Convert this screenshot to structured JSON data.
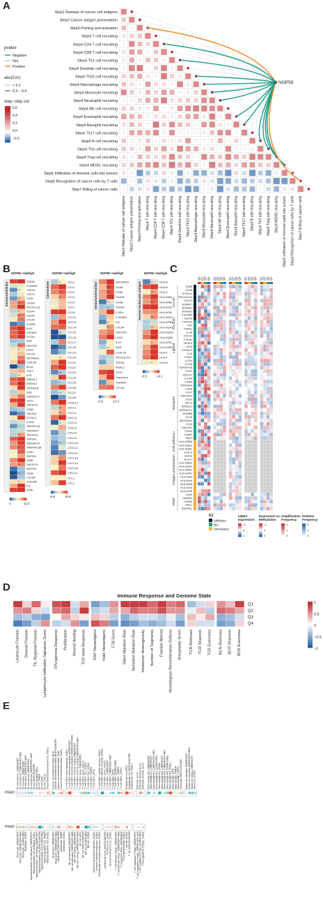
{
  "panels": {
    "A": "A",
    "B": "B",
    "C": "C",
    "D": "D",
    "E": "E"
  },
  "panelA": {
    "steps": [
      "Step1 Release of cancer cell antigens",
      "Step2 Cancer antigen presentation",
      "Step3 Priming and activation",
      "Step4 T cell recruiting",
      "Step4 CD4 T cell recruiting",
      "Step4 CD8 T cell recruiting",
      "Step4 Th1 cell recruiting",
      "Step4 Dendritic cell recruiting",
      "Step4 Th22 cell recruiting",
      "Step4 Macrophage recruiting",
      "Step4 Monocyte recruiting",
      "Step4 Neutrophil recruiting",
      "Step4 NK cell recruiting",
      "Step4 Eosinophil recruiting",
      "Step4 Basophil recruiting",
      "Step4 Th17 cell recruiting",
      "Step4 B cell recruiting",
      "Step4 Th2 cell recruiting",
      "Step4 Treg cell recruiting",
      "Step4 MDSC recruiting",
      "Step5 Infiltration of immune cells into tumors",
      "Step6 Recognition of cancer cells by T cells",
      "Step7 Killing of cancer cells"
    ],
    "hub_label": "NOP58",
    "legend": {
      "pvalue_title": "pvalue",
      "pvalue_items": [
        "Negative",
        "Not",
        "Positive"
      ],
      "pvalue_colors": [
        "#1a9e86",
        "#c8c8c8",
        "#f08a24"
      ],
      "abs_title": "abs(Cor)",
      "abs_items": [
        "< 0.2",
        "0.2 – 0.4"
      ],
      "cor_title": "step−step cor",
      "cor_ticks": [
        "0.6",
        "0.4",
        "0.2",
        "0.0",
        "−0.2"
      ]
    },
    "hub_links": [
      {
        "row": 2,
        "sign": "Positive"
      },
      {
        "row": 4,
        "sign": "Negative"
      },
      {
        "row": 6,
        "sign": "Negative"
      },
      {
        "row": 8,
        "sign": "Negative"
      },
      {
        "row": 9,
        "sign": "Negative"
      },
      {
        "row": 10,
        "sign": "Negative"
      },
      {
        "row": 11,
        "sign": "Negative"
      },
      {
        "row": 13,
        "sign": "Negative"
      },
      {
        "row": 14,
        "sign": "Negative"
      },
      {
        "row": 16,
        "sign": "Negative"
      },
      {
        "row": 17,
        "sign": "Negative"
      },
      {
        "row": 18,
        "sign": "Negative"
      },
      {
        "row": 19,
        "sign": "Negative"
      },
      {
        "row": 21,
        "sign": "Positive"
      }
    ]
  },
  "panelB": {
    "group_header": "NOP58: low/high",
    "blocks": [
      {
        "title": "Immunoinhibitor",
        "genes": [
          "TGFB1",
          "C10orf54",
          "CSF1R",
          "CD274",
          "CD96",
          "CD160",
          "PDCD1LG2",
          "CD244",
          "CD276",
          "CTLA4",
          "IL10RB",
          "IDO1",
          "TGFBR1",
          "VTCN1",
          "KDR",
          "HAVCR2",
          "LAG3",
          "PDCD1",
          "ADORA2A",
          "LGALS9",
          "BTLA",
          "TIGIT",
          "IL10",
          "KIR2DL1",
          "KIR2DL3",
          "TNFRSF8",
          "IL6R",
          "TNFRSF17",
          "CD27",
          "TNFSF14",
          "CD86",
          "TMIGD2",
          "ICOSLG",
          "IL2RA",
          "TNFRSF25",
          "TNFRSF4",
          "TNFSF18",
          "TNFSF9",
          "TNFRSF14",
          "TNFRSF13B",
          "CD40",
          "TNFSF4",
          "CD80",
          "TNFSF13",
          "ENTPD1",
          "CD48",
          "CXCR4",
          "C10orf54",
          "IL6",
          "NT5E"
        ],
        "ticks": [
          "-1",
          "11.5"
        ]
      },
      {
        "title": "Chemokine",
        "genes": [
          "CCL1",
          "CCL2",
          "CCL3",
          "CCL4",
          "CCL5",
          "CCL7",
          "CCL8",
          "CCL11",
          "CCL13",
          "CCL14",
          "CCL15",
          "CCL16",
          "CCL17",
          "CCL18",
          "CCL19",
          "CCL20",
          "CCL21",
          "CCL22",
          "CCL23",
          "CCL24",
          "CCL25",
          "CCL26",
          "CCL27",
          "CCL28",
          "CX3CL1",
          "CXCL1",
          "CXCL2",
          "CXCL3",
          "CXCL5",
          "CXCL6",
          "CXCL8",
          "CXCL9",
          "CXCL10",
          "CXCL11",
          "CXCL12",
          "CXCL13",
          "CXCL14",
          "CXCL16",
          "CXCL17",
          "XCL1",
          "XCL2"
        ],
        "ticks": [
          "-0.8",
          "10.6"
        ]
      },
      {
        "title": "Immunostimulator",
        "genes": [
          "ADORA2A",
          "CD48",
          "CD40",
          "CD244",
          "CD96",
          "CD160",
          "IL2RA",
          "C10orf54",
          "IL6",
          "CTLA4",
          "HAVCR2",
          "LAG3",
          "IL10",
          "KDR",
          "LGALS9",
          "PDCD1LG2",
          "TGFB1",
          "PVRL2",
          "TIGIT",
          "TNFRSF4",
          "TGFBR1",
          "VTCN1"
        ],
        "ticks": [
          "-0.8",
          "12.4"
        ]
      },
      {
        "title": "Human leukocyte antigen",
        "genes": [
          "HLA-A",
          "HLA-B",
          "HLA-C",
          "HLA-DMA",
          "HLA-DMB",
          "HLA-DOA",
          "HLA-DOB",
          "HLA-DPA1",
          "HLA-DPB1",
          "HLA-DQA1",
          "HLA-DQA2",
          "HLA-DQB1",
          "HLA-DRA",
          "HLA-DRB1",
          "HLA-E",
          "HLA-F",
          "HLA-G"
        ],
        "ticks": [
          "-0.5",
          "14.1"
        ]
      }
    ]
  },
  "panelC": {
    "col_headers": [
      "Q1",
      "Q2",
      "Q3",
      "Q4",
      "Q1",
      "Q2",
      "Q3",
      "Q4",
      "Q1",
      "Q2",
      "Q3",
      "Q4",
      "Q1",
      "Q2",
      "Q3",
      "Q4",
      "Q1",
      "Q2",
      "Q3",
      "Q4"
    ],
    "genes": [
      "CD80",
      "CD28",
      "ICOSLG",
      "PDCD1LG2",
      "CD274",
      "SLAMF7",
      "BTN3A2",
      "BTN3A1",
      "C10orf54",
      "CD276",
      "TNFSF9",
      "TNF",
      "TGFB1",
      "IL1B",
      "CXCL9",
      "TGFB1",
      "VEGFA",
      "CD70",
      "CD40LG",
      "IL10",
      "IFNA1",
      "IL12A",
      "IL13A",
      "TNFRSF18",
      "TIGIT",
      "PDCD1",
      "CTLA4",
      "IL2RA",
      "TNFRSF4",
      "LAG3",
      "CD27",
      "TNFRSF9",
      "ICOS",
      "BTLA",
      "KIR2DL1",
      "TNFRSF14",
      "EDNRB",
      "CD40",
      "ADORA2A",
      "TLR4",
      "HAVCR2",
      "ITGB2",
      "ICAM1",
      "SELP",
      "HLA-DRB5",
      "HLA-DQA1",
      "HLA-DQB1",
      "HLA-A",
      "HLA-B",
      "HLA-C",
      "HLA-DRB1",
      "HLA-DQA2",
      "HLA-DPB1",
      "HLA-DPA1",
      "HLA-DRA",
      "HLA-DMA",
      "HLA-DMB",
      "HLA-DOA",
      "HLA-DOB",
      "CD40",
      "HMGB1",
      "GZMA",
      "PRF1",
      "ENTPD1"
    ],
    "groups": [
      "Co-inh",
      "Co-stim",
      "Ligand",
      "Receptor",
      "Cell adhesion",
      "Antigen presentation",
      "Other"
    ],
    "legend_ici_title": "ICI",
    "legend_ici": [
      "Inhibitory",
      "N/A",
      "Stimulatory"
    ],
    "bottom_titles": [
      "mRNA Expression",
      "Expression vs. Methylation",
      "Amplification Frequency",
      "Deletion Frequency"
    ],
    "bottom_ticks": [
      [
        "-2",
        "0",
        "2"
      ],
      [
        "-2",
        "0",
        "2"
      ],
      [
        "0",
        "1",
        "2"
      ],
      [
        "0",
        "1",
        "2"
      ]
    ]
  },
  "panelD": {
    "title": "Immune Response and Genome State",
    "rows": [
      "Q1",
      "Q2",
      "Q3",
      "Q4"
    ],
    "groups": [
      [
        "Leukocyte Fraction",
        "Stromal Fraction",
        "TIL Regional Fraction",
        "Lymphocyte Infiltration Signature Score"
      ],
      [
        "IFN-gamma Response",
        "Proliferation",
        "Wound Healing",
        "TGF-beta Response"
      ],
      [
        "SNV Neoantigens",
        "Indel Neoantigens",
        "CTA Score"
      ],
      [
        "Silent Mutation Rate",
        "Nonsilent Mutation Rate",
        "Intratumor Heterogeneity",
        "Number of Segments",
        "Fraction Altered",
        "Homologous Recombination Defects",
        "Aneuploidy Score"
      ],
      [
        "TCR Richness",
        "TCR Shannon",
        "TCR Evenness"
      ],
      [
        "BCR Richness",
        "BCR Shannon",
        "BCR Evenness"
      ]
    ],
    "legend_ticks": [
      "1",
      "0.5",
      "0",
      "−0.5",
      "−1"
    ]
  },
  "panelE": {
    "row_label": "PRAD",
    "top_groups": [
      [
        "B cell memory_CIBERSORT",
        "B cell memory_CIBERSORT-ABS",
        "B cell naive_CIBERSORT",
        "B cell naive_CIBERSORT-ABS",
        "B cell plasma_CIBERSORT",
        "B cell plasma_CIBERSORT-ABS",
        "B cell_MCPCOUNTER",
        "B cell_QUANTISEQ",
        "B cell_TIMER",
        "B cell_EPIC",
        "B cell_XCELL",
        "Class-switched memory B cell_XCELL"
      ],
      [
        "Cancer associated fibroblast_EPIC",
        "Cancer associated fibroblast_MCPCOUNTER",
        "Cancer associated fibroblast_TIDE",
        "Cancer associated fibroblast_XCELL"
      ],
      [
        "T cell CD4+ (non-regulatory)_XCELL",
        "T cell CD4+ memory activated_CIBERSORT",
        "T cell CD4+ memory activated_CIBERSORT-ABS",
        "T cell CD4+ memory resting_CIBERSORT",
        "T cell CD4+ memory resting_CIBERSORT-ABS",
        "T cell CD4+ naive_CIBERSORT",
        "T cell CD4+ naive_XCELL",
        "T cell CD4+ Th1_XCELL",
        "T cell CD4+ Th2_XCELL",
        "T cell CD4+_TIMER",
        "T cell CD4+_EPIC"
      ],
      [
        "T cell CD8+ central memory_XCELL",
        "T cell CD8+ effector memory_XCELL",
        "T cell CD8+ naive_XCELL",
        "T cell CD8+_CIBERSORT",
        "T cell CD8+_CIBERSORT-ABS",
        "T cell CD8+_EPIC",
        "T cell CD8+_QUANTISEQ",
        "T cell CD8+_TIMER",
        "T cell CD8+_XCELL"
      ],
      [
        "Endothelial cell_EPIC",
        "Endothelial cell_MCPCOUNTER",
        "Endothelial cell_XCELL"
      ],
      [
        "Estimate Score",
        "Estimate Stromal Score",
        "Estimate Immune Score"
      ],
      [
        "Macrophage M0_CIBERSORT",
        "Macrophage M1_CIBERSORT",
        "Macrophage M1_CIBERSORT-ABS",
        "Macrophage M1_QUANTISEQ",
        "Macrophage M1_XCELL",
        "Macrophage M2_CIBERSORT",
        "Macrophage M2_CIBERSORT-ABS",
        "Macrophage M2_QUANTISEQ",
        "Macrophage M2_XCELL",
        "Macrophage_EPIC",
        "Macrophage_TIMER",
        "Macrophage_XCELL",
        "Monocyte_MCPCOUNTER"
      ],
      [
        "Mast cell activated_CIBERSORT",
        "Mast cell activated_CIBERSORT-ABS",
        "Mast cell resting_CIBERSORT",
        "Mast cell_XCELL"
      ]
    ],
    "bottom_groups": [
      [
        "Monocyte_CIBERSORT",
        "Monocyte_CIBERSORT-ABS",
        "Monocyte_QUANTISEQ",
        "Monocyte_XCELL"
      ],
      [
        "Myeloid dendritic cell activated_CIBERSORT",
        "Myeloid dendritic cell activated_XCELL",
        "Myeloid dendritic cell resting_CIBERSORT",
        "Myeloid dendritic cell_MCPCOUNTER",
        "Myeloid dendritic cell_QUANTISEQ",
        "Myeloid dendritic cell_TIMER",
        "Myeloid dendritic cell_XCELL"
      ],
      [
        "Neutrophil_CIBERSORT",
        "Neutrophil_CIBERSORT-ABS",
        "Neutrophil_MCPCOUNTER",
        "Neutrophil_TIMER",
        "Neutrophil_XCELL"
      ],
      [
        "NK cell activated_CIBERSORT",
        "NK cell activated_CIBERSORT-ABS",
        "NK cell resting_CIBERSORT",
        "NK cell resting_CIBERSORT-ABS",
        "NK cell_EPIC",
        "NK cell_MCPCOUNTER",
        "NK cell_QUANTISEQ",
        "NK cell_XCELL"
      ],
      [
        "Common lymphoid progenitor_XCELL",
        "Common myeloid progenitor_XCELL",
        "Granulocyte-monocyte progenitor_XCELL"
      ],
      [
        "cytotoxicity score_MCPCOUNTER",
        "stroma score_XCELL",
        "microenvironment score_XCELL"
      ],
      [
        "T cell follicular helper_CIBERSORT",
        "T cell follicular helper_CIBERSORT-ABS",
        "T cell gamma delta_CIBERSORT",
        "T cell gamma delta_XCELL",
        "T cell NK_XCELL",
        "T cell_MCPCOUNTER"
      ],
      [
        "T cell regulatory (Tregs)_CIBERSORT",
        "T cell regulatory (Tregs)_CIBERSORT-ABS",
        "T cell regulatory (Tregs)_QUANTISEQ",
        "T cell regulatory (Tregs)_XCELL"
      ]
    ]
  }
}
